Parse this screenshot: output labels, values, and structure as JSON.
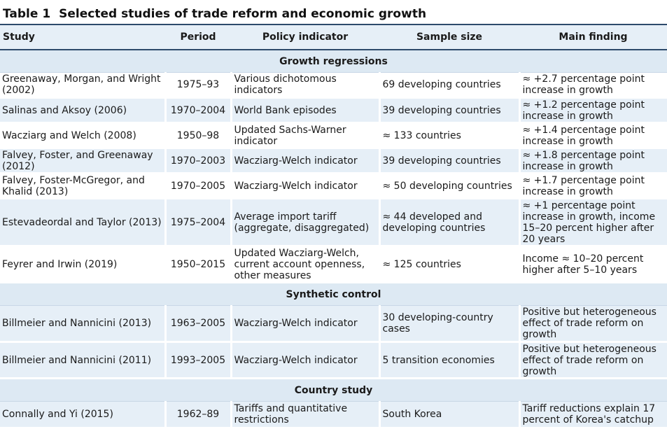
{
  "title": {
    "number": "Table 1",
    "text": "Selected studies of trade reform and economic growth"
  },
  "headers": [
    "Study",
    "Period",
    "Policy indicator",
    "Sample size",
    "Main finding"
  ],
  "sections": [
    {
      "label": "Growth regressions",
      "rows": [
        [
          "Greenaway, Morgan, and Wright (2002)",
          "1975–93",
          "Various dichotomous indicators",
          "69 developing countries",
          "≈ +2.7 percentage point increase in growth"
        ],
        [
          "Salinas and Aksoy (2006)",
          "1970–2004",
          "World Bank episodes",
          "39 developing countries",
          "≈ +1.2 percentage point increase in growth"
        ],
        [
          "Wacziarg and Welch (2008)",
          "1950–98",
          "Updated Sachs-Warner indicator",
          "≈ 133 countries",
          "≈ +1.4 percentage point increase in growth"
        ],
        [
          "Falvey, Foster, and Greenaway (2012)",
          "1970–2003",
          "Wacziarg-Welch indicator",
          "39 developing countries",
          "≈ +1.8 percentage point increase in growth"
        ],
        [
          "Falvey, Foster-McGregor, and Khalid (2013)",
          "1970–2005",
          "Wacziarg-Welch indicator",
          "≈ 50 developing countries",
          "≈ +1.7 percentage point increase in growth"
        ],
        [
          "Estevadeordal and Taylor (2013)",
          "1975–2004",
          "Average import tariff (aggregate, disaggregated)",
          "≈ 44 developed and developing countries",
          "≈ +1 percentage point increase in growth, income 15–20 percent higher after 20 years"
        ],
        [
          "Feyrer and Irwin (2019)",
          "1950–2015",
          "Updated Wacziarg-Welch, current account openness, other measures",
          "≈ 125 countries",
          "Income ≈ 10–20 percent higher after 5–10 years"
        ]
      ]
    },
    {
      "label": "Synthetic control",
      "rows": [
        [
          "Billmeier and Nannicini (2013)",
          "1963–2005",
          "Wacziarg-Welch indicator",
          "30 developing-country cases",
          "Positive but heterogeneous effect of trade reform on growth"
        ],
        [
          "Billmeier and Nannicini (2011)",
          "1993–2005",
          "Wacziarg-Welch indicator",
          "5 transition economies",
          "Positive but heterogeneous effect of trade reform on growth"
        ]
      ]
    },
    {
      "label": "Country study",
      "rows": [
        [
          "Connally and Yi (2015)",
          "1962–89",
          "Tariffs and quantitative restrictions",
          "South Korea",
          "Tariff reductions explain 17 percent of Korea's catchup"
        ]
      ]
    }
  ]
}
